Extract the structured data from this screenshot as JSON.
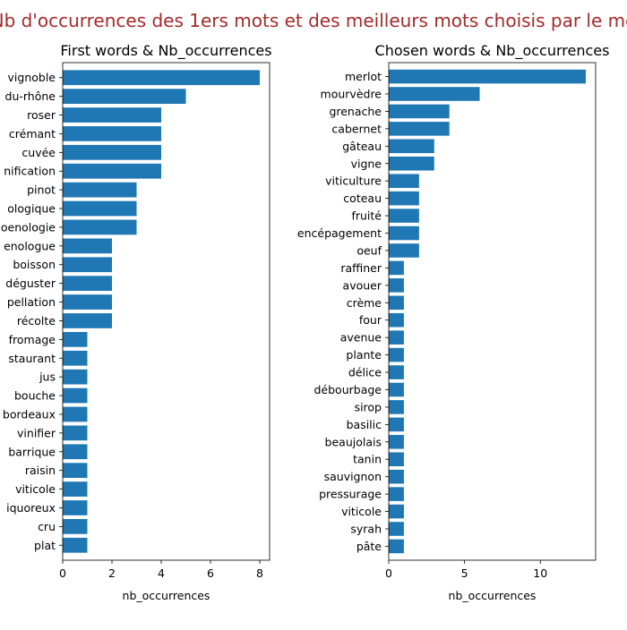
{
  "suptitle": "Nb d'occurrences des 1ers mots et des meilleurs mots choisis par le mo",
  "bar_color": "#1f77b4",
  "title_color": "#a52a2a",
  "chart_data": [
    {
      "type": "bar",
      "orientation": "horizontal",
      "title": "First words & Nb_occurrences",
      "xlabel": "nb_occurrences",
      "ylabel": "",
      "xlim": [
        0,
        8.4
      ],
      "xticks": [
        0,
        2,
        4,
        6,
        8
      ],
      "categories": [
        "vignoble",
        "du-rhône",
        "roser",
        "crémant",
        "cuvée",
        "nification",
        "pinot",
        "ologique",
        "oenologie",
        "enologue",
        "boisson",
        "déguster",
        "pellation",
        "récolte",
        "fromage",
        "staurant",
        "jus",
        "bouche",
        "bordeaux",
        "vinifier",
        "barrique",
        "raisin",
        "viticole",
        "iquoreux",
        "cru",
        "plat"
      ],
      "values": [
        8,
        5,
        4,
        4,
        4,
        4,
        3,
        3,
        3,
        2,
        2,
        2,
        2,
        2,
        1,
        1,
        1,
        1,
        1,
        1,
        1,
        1,
        1,
        1,
        1,
        1
      ]
    },
    {
      "type": "bar",
      "orientation": "horizontal",
      "title": "Chosen words & Nb_occurrences",
      "xlabel": "nb_occurrences",
      "ylabel": "",
      "xlim": [
        0,
        13.65
      ],
      "xticks": [
        0,
        5,
        10
      ],
      "categories": [
        "merlot",
        "mourvèdre",
        "grenache",
        "cabernet",
        "gâteau",
        "vigne",
        "viticulture",
        "coteau",
        "fruité",
        "encépagement",
        "oeuf",
        "raffiner",
        "avouer",
        "crème",
        "four",
        "avenue",
        "plante",
        "délice",
        "débourbage",
        "sirop",
        "basilic",
        "beaujolais",
        "tanin",
        "sauvignon",
        "pressurage",
        "viticole",
        "syrah",
        "pâte"
      ],
      "values": [
        13,
        6,
        4,
        4,
        3,
        3,
        2,
        2,
        2,
        2,
        2,
        1,
        1,
        1,
        1,
        1,
        1,
        1,
        1,
        1,
        1,
        1,
        1,
        1,
        1,
        1,
        1,
        1
      ]
    }
  ]
}
